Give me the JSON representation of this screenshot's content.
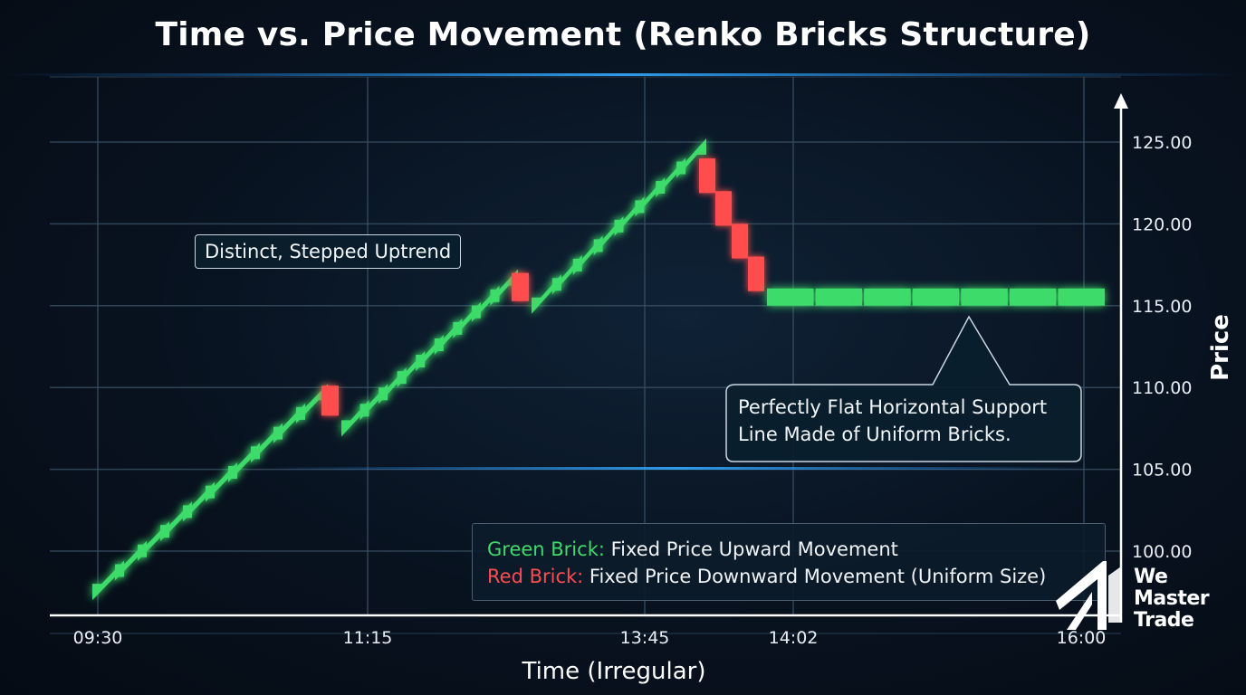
{
  "title": "Time vs. Price Movement (Renko Bricks Structure)",
  "chart_data": {
    "type": "renko",
    "title": "Time vs. Price Movement (Renko Bricks Structure)",
    "xlabel": "Time (Irregular)",
    "ylabel": "Price",
    "ylim": [
      96,
      126
    ],
    "yticks": [
      "100.00",
      "105.00",
      "110.00",
      "115.00",
      "120.00",
      "125.00"
    ],
    "xticks": [
      "09:30",
      "11:15",
      "13:45",
      "14:02",
      "16:00"
    ],
    "grid": true,
    "colors": {
      "up": "#3ddb6a",
      "down": "#ff4d4d"
    },
    "up_segments": [
      {
        "from": 98,
        "to": 110,
        "steps": 10
      },
      {
        "from": 108,
        "to": 117,
        "steps": 9
      },
      {
        "from": 115.5,
        "to": 125,
        "steps": 8
      }
    ],
    "down_bricks": [
      {
        "price_top": 110,
        "price_bottom": 108.5,
        "at": "after first up segment"
      },
      {
        "price_top": 117,
        "price_bottom": 115.5,
        "at": "after second up segment"
      },
      {
        "price_top": 124,
        "price_bottom": 116,
        "count": 4,
        "at": "after peak 125.00"
      }
    ],
    "flat_support": {
      "price": 115.5,
      "bricks": 7,
      "color": "up"
    },
    "annotations": [
      "Distinct, Stepped Uptrend",
      "Perfectly Flat Horizontal Support Line Made of Uniform Bricks."
    ],
    "legend": {
      "placement": "bottom-right",
      "items": [
        {
          "label": "Green Brick:",
          "description": "Fixed Price Upward Movement",
          "color": "#3ddb6a"
        },
        {
          "label": "Red Brick:",
          "description": "Fixed Price Downward Movement (Uniform Size)",
          "color": "#ff4d4d"
        }
      ]
    }
  },
  "logo": {
    "line1": "We",
    "line2": "Master",
    "line3": "Trade"
  }
}
